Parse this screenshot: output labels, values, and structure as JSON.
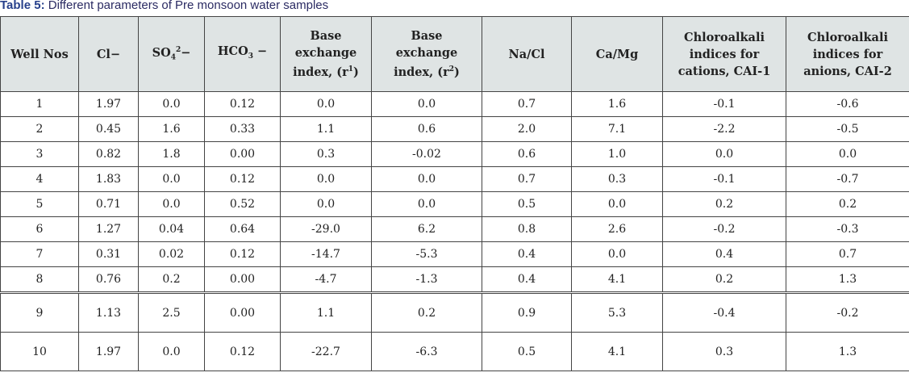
{
  "caption": {
    "label": "Table 5:",
    "text": " Different parameters of Pre monsoon water samples"
  },
  "headers": {
    "well": "Well Nos",
    "cl": "Cl−",
    "so4": {
      "base": "SO",
      "sub": "4",
      "sup": "2",
      "tail": "−"
    },
    "hco3": {
      "base": "HCO",
      "sub": "3",
      "tail": " −"
    },
    "bei1": {
      "line1": "Base",
      "line2": "exchange",
      "line3": "index, (r",
      "sup": "1",
      "close": ")"
    },
    "bei2": {
      "line1": "Base",
      "line2": "exchange",
      "line3": "index, (r",
      "sup": "2",
      "close": ")"
    },
    "nacl": "Na/Cl",
    "camg": "Ca/Mg",
    "cai1": {
      "line1": "Chloroalkali",
      "line2": "indices for",
      "line3": "cations, CAI-1"
    },
    "cai2": {
      "line1": "Chloroalkali",
      "line2": "indices for",
      "line3": "anions, CAI-2"
    }
  },
  "rows": [
    [
      "1",
      "1.97",
      "0.0",
      "0.12",
      "0.0",
      "0.0",
      "0.7",
      "1.6",
      "-0.1",
      "-0.6"
    ],
    [
      "2",
      "0.45",
      "1.6",
      "0.33",
      "1.1",
      "0.6",
      "2.0",
      "7.1",
      "-2.2",
      "-0.5"
    ],
    [
      "3",
      "0.82",
      "1.8",
      "0.00",
      "0.3",
      "-0.02",
      "0.6",
      "1.0",
      "0.0",
      "0.0"
    ],
    [
      "4",
      "1.83",
      "0.0",
      "0.12",
      "0.0",
      "0.0",
      "0.7",
      "0.3",
      "-0.1",
      "-0.7"
    ],
    [
      "5",
      "0.71",
      "0.0",
      "0.52",
      "0.0",
      "0.0",
      "0.5",
      "0.0",
      "0.2",
      "0.2"
    ],
    [
      "6",
      "1.27",
      "0.04",
      "0.64",
      "-29.0",
      "6.2",
      "0.8",
      "2.6",
      "-0.2",
      "-0.3"
    ],
    [
      "7",
      "0.31",
      "0.02",
      "0.12",
      "-14.7",
      "-5.3",
      "0.4",
      "0.0",
      "0.4",
      "0.7"
    ],
    [
      "8",
      "0.76",
      "0.2",
      "0.00",
      "-4.7",
      "-1.3",
      "0.4",
      "4.1",
      "0.2",
      "1.3"
    ],
    [
      "9",
      "1.13",
      "2.5",
      "0.00",
      "1.1",
      "0.2",
      "0.9",
      "5.3",
      "-0.4",
      "-0.2"
    ],
    [
      "10",
      "1.97",
      "0.0",
      "0.12",
      "-22.7",
      "-6.3",
      "0.5",
      "4.1",
      "0.3",
      "1.3"
    ]
  ]
}
